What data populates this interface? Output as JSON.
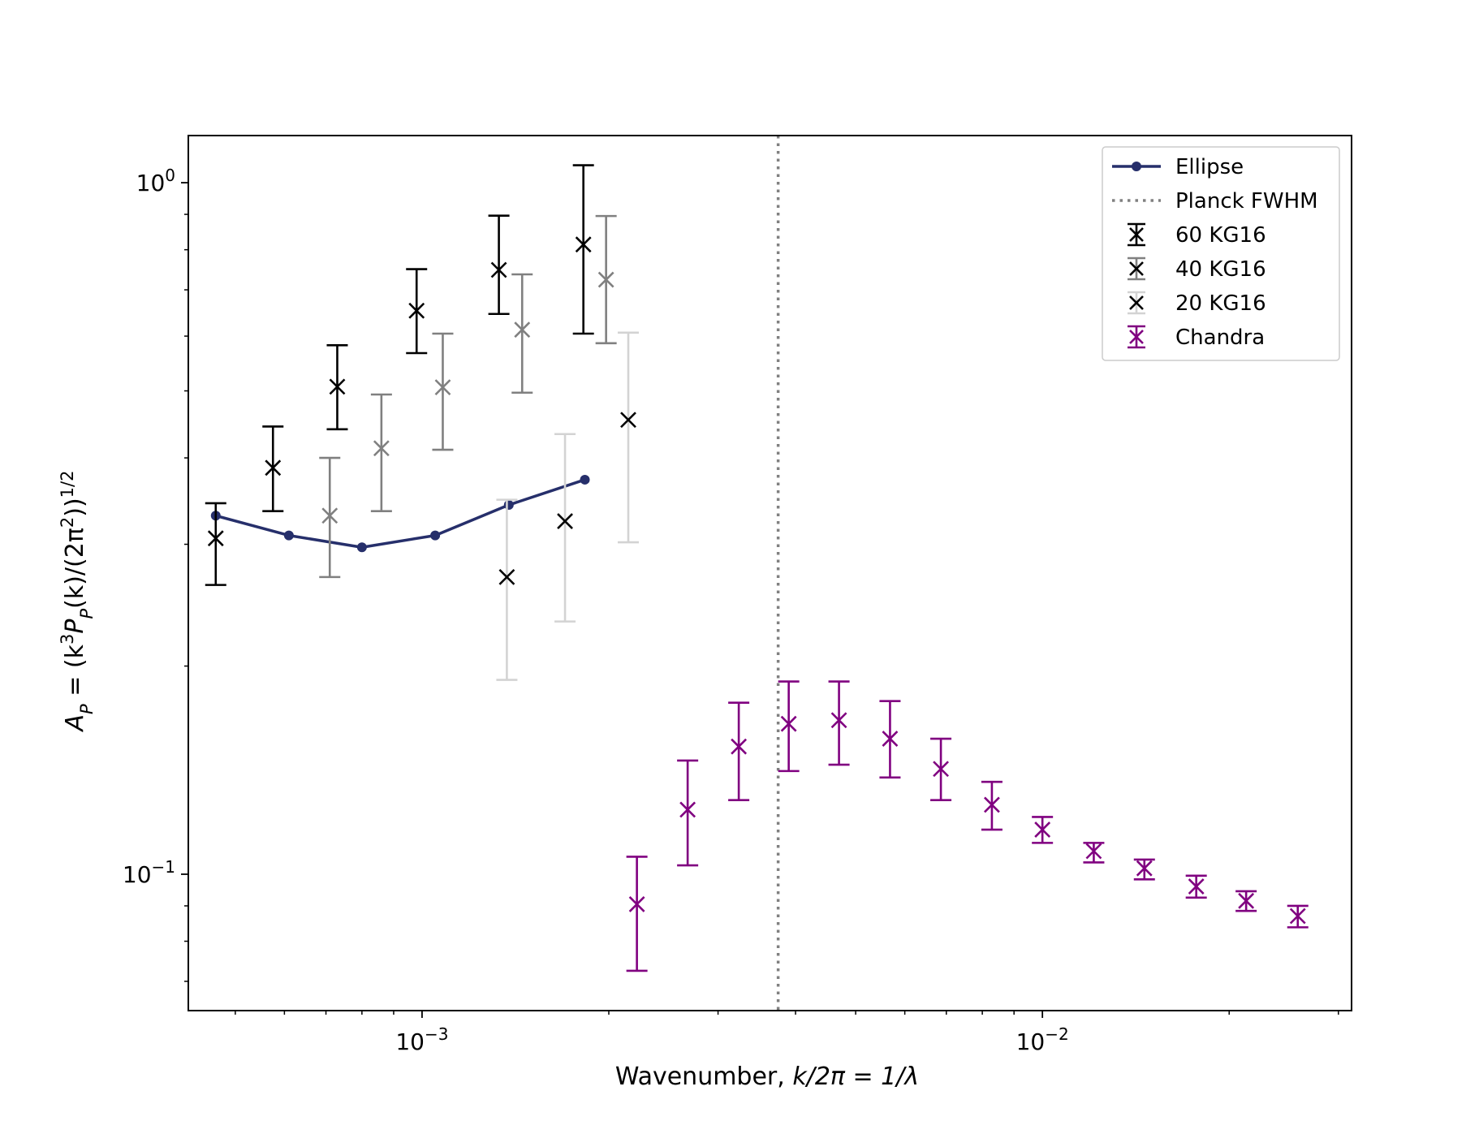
{
  "chart_data": {
    "type": "scatter",
    "xscale": "log",
    "yscale": "log",
    "xlim": [
      0.00042,
      0.0315
    ],
    "ylim": [
      0.0635,
      1.17
    ],
    "xlabel_main": "Wavenumber, ",
    "xlabel_math": "k/2π = 1/λ",
    "ylabel_pre": "A",
    "ylabel_sub": "P",
    "ylabel_mid": " = (k",
    "ylabel_sup1": "3",
    "ylabel_p": "P",
    "ylabel_sub2": "P",
    "ylabel_rest": "(k)/(2π",
    "ylabel_sup2": "2",
    "ylabel_close": "))",
    "ylabel_sup3": "1/2",
    "xticks": [
      {
        "value": 0.001,
        "base": "10",
        "exp": "−3"
      },
      {
        "value": 0.01,
        "base": "10",
        "exp": "−2"
      }
    ],
    "yticks": [
      {
        "value": 0.1,
        "base": "10",
        "exp": "−1"
      },
      {
        "value": 1.0,
        "base": "10",
        "exp": "0"
      }
    ],
    "vline": {
      "name": "Planck FWHM",
      "x": 0.00375,
      "color": "#808080"
    },
    "series": [
      {
        "name": "Ellipse",
        "kind": "line",
        "color": "#262f6b",
        "x": [
          0.000465,
          0.00061,
          0.0008,
          0.00105,
          0.00138,
          0.00183
        ],
        "y": [
          0.33,
          0.309,
          0.297,
          0.309,
          0.342,
          0.372
        ]
      },
      {
        "name": "60 KG16",
        "kind": "errorbar",
        "color": "#000000",
        "x": [
          0.000465,
          0.000575,
          0.00073,
          0.00098,
          0.00133,
          0.00182
        ],
        "y": [
          0.306,
          0.387,
          0.507,
          0.653,
          0.748,
          0.814
        ],
        "ylo": [
          0.262,
          0.335,
          0.44,
          0.567,
          0.646,
          0.605
        ],
        "yhi": [
          0.344,
          0.444,
          0.582,
          0.75,
          0.896,
          1.06
        ]
      },
      {
        "name": "40 KG16",
        "kind": "errorbar",
        "color": "#808080",
        "x": [
          0.00071,
          0.00086,
          0.00108,
          0.00145,
          0.00198
        ],
        "y": [
          0.33,
          0.413,
          0.506,
          0.613,
          0.724
        ],
        "ylo": [
          0.269,
          0.335,
          0.411,
          0.497,
          0.586
        ],
        "yhi": [
          0.4,
          0.494,
          0.605,
          0.737,
          0.895
        ]
      },
      {
        "name": "20 KG16",
        "kind": "errorbar",
        "color": "#d3d3d3",
        "marker_color": "#000000",
        "x": [
          0.00137,
          0.0017,
          0.00215
        ],
        "y": [
          0.269,
          0.324,
          0.454
        ],
        "ylo": [
          0.191,
          0.232,
          0.302
        ],
        "yhi": [
          0.348,
          0.433,
          0.607
        ]
      },
      {
        "name": "Chandra",
        "kind": "errorbar",
        "color": "#800080",
        "x": [
          0.00222,
          0.00268,
          0.00324,
          0.0039,
          0.0047,
          0.00568,
          0.00686,
          0.00829,
          0.01,
          0.0121,
          0.0146,
          0.0177,
          0.0213,
          0.0258
        ],
        "y": [
          0.0905,
          0.124,
          0.153,
          0.165,
          0.167,
          0.157,
          0.142,
          0.126,
          0.116,
          0.108,
          0.102,
          0.096,
          0.0915,
          0.087
        ],
        "ylo": [
          0.0725,
          0.103,
          0.128,
          0.141,
          0.144,
          0.138,
          0.128,
          0.116,
          0.111,
          0.104,
          0.0983,
          0.0925,
          0.0885,
          0.0838
        ],
        "yhi": [
          0.106,
          0.146,
          0.177,
          0.19,
          0.19,
          0.178,
          0.157,
          0.136,
          0.121,
          0.111,
          0.105,
          0.0995,
          0.0945,
          0.09
        ]
      }
    ],
    "legend": {
      "position": "upper right",
      "entries": [
        {
          "label": "Ellipse",
          "kind": "line",
          "color": "#262f6b"
        },
        {
          "label": "Planck FWHM",
          "kind": "dotted",
          "color": "#808080"
        },
        {
          "label": "60 KG16",
          "kind": "errorbar",
          "color": "#000000",
          "marker_color": "#000000"
        },
        {
          "label": "40 KG16",
          "kind": "errorbar",
          "color": "#808080",
          "marker_color": "#000000"
        },
        {
          "label": "20 KG16",
          "kind": "errorbar",
          "color": "#d3d3d3",
          "marker_color": "#000000"
        },
        {
          "label": "Chandra",
          "kind": "errorbar",
          "color": "#800080",
          "marker_color": "#800080"
        }
      ]
    }
  }
}
